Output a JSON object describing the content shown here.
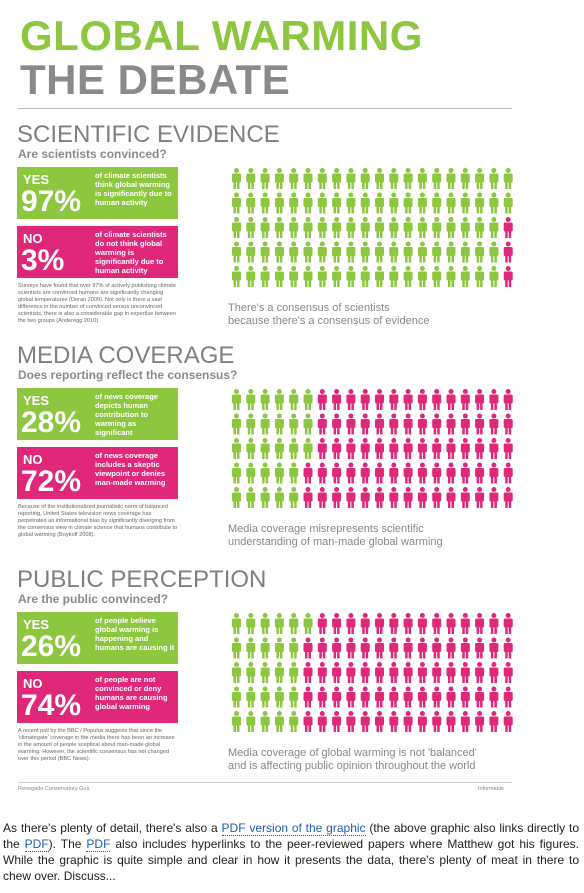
{
  "header": {
    "title": "GLOBAL WARMING",
    "subtitle": "THE DEBATE"
  },
  "sections": [
    {
      "heading": "SCIENTIFIC EVIDENCE",
      "question": "Are scientists convinced?",
      "yes": {
        "label": "YES",
        "percent": 97,
        "percent_label": "97%",
        "text": "of climate scientists think global warming is significantly due to human activity"
      },
      "no": {
        "label": "NO",
        "percent": 3,
        "percent_label": "3%",
        "text": "of climate scientists do not think global warming is significantly due to human activity"
      },
      "note": "Surveys have found that over 97% of actively publishing climate scientists are convinced humans are significantly changing global temperatures (Doran 2009). Not only is there a vast difference in the number of convinced versus unconvinced scientists, there is also a considerable gap in expertise between the two groups (Anderegg 2010).",
      "caption": [
        "There's a consensus of scientists",
        "because there's a consensus of evidence"
      ]
    },
    {
      "heading": "MEDIA COVERAGE",
      "question": "Does reporting reflect the consensus?",
      "yes": {
        "label": "YES",
        "percent": 28,
        "percent_label": "28%",
        "text": "of news coverage depicts human contribution to warming as significant"
      },
      "no": {
        "label": "NO",
        "percent": 72,
        "percent_label": "72%",
        "text": "of news coverage includes a skeptic viewpoint or denies man-made warming"
      },
      "note": "Because of the institutionalized journalistic norm of balanced reporting, United States television news coverage has perpetrated an informational bias by significantly diverging from the consensus view in climate science that humans contribute to global warming (Boykoff 2008).",
      "caption": [
        "Media coverage misrepresents scientific",
        "understanding of man-made global warming"
      ]
    },
    {
      "heading": "PUBLIC PERCEPTION",
      "question": "Are the public convinced?",
      "yes": {
        "label": "YES",
        "percent": 26,
        "percent_label": "26%",
        "text": "of people believe global warming is happening and humans are causing it"
      },
      "no": {
        "label": "NO",
        "percent": 74,
        "percent_label": "74%",
        "text": "of people are not convinced or deny humans are causing global warming"
      },
      "note": "A recent poll by the BBC / Populus suggests that since the 'climategate' coverage in the media there has been an increase in the amount of people sceptical about man-made global warming. However, the scientific consensus has not changed over this period (BBC News).",
      "caption": [
        "Media coverage of global warming is not 'balanced'",
        "and is affecting public opinion throughout the world"
      ]
    }
  ],
  "footer": {
    "left": "Renegade Conservatory Gus",
    "right": "Informable"
  },
  "paragraph": [
    {
      "text": "As there's plenty of detail, there's also a "
    },
    {
      "link": "PDF version of the graphic"
    },
    {
      "text": " (the above graphic also links directly to the "
    },
    {
      "link": "PDF"
    },
    {
      "text": "). The "
    },
    {
      "link": "PDF"
    },
    {
      "text": " also includes hyperlinks to the peer-reviewed papers where Matthew got his figures. While the graphic is quite simple and clear in how it presents the data, there's plenty of meat in there to chew over. Discuss..."
    }
  ],
  "colors": {
    "yes": "#8dc63f",
    "no": "#e0287a"
  }
}
